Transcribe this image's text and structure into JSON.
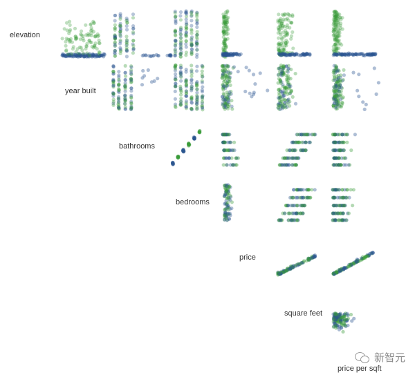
{
  "chart_data": {
    "type": "scatter",
    "title": "",
    "variables": [
      "elevation",
      "year built",
      "bathrooms",
      "bedrooms",
      "price",
      "square feet",
      "price per sqft"
    ],
    "series": [
      {
        "colors": {
          "point": "#2e8b2e"
        }
      },
      {
        "colors": {
          "point": "#2a4f86"
        }
      }
    ],
    "colors": {
      "green": "#3a9a3a",
      "blue": "#2b5590",
      "label": "#333333"
    },
    "grid": false,
    "legend": "none",
    "matrix": "upper-triangle scatterplot matrix, variable names on the diagonal"
  },
  "watermark": {
    "text": "新智元"
  }
}
